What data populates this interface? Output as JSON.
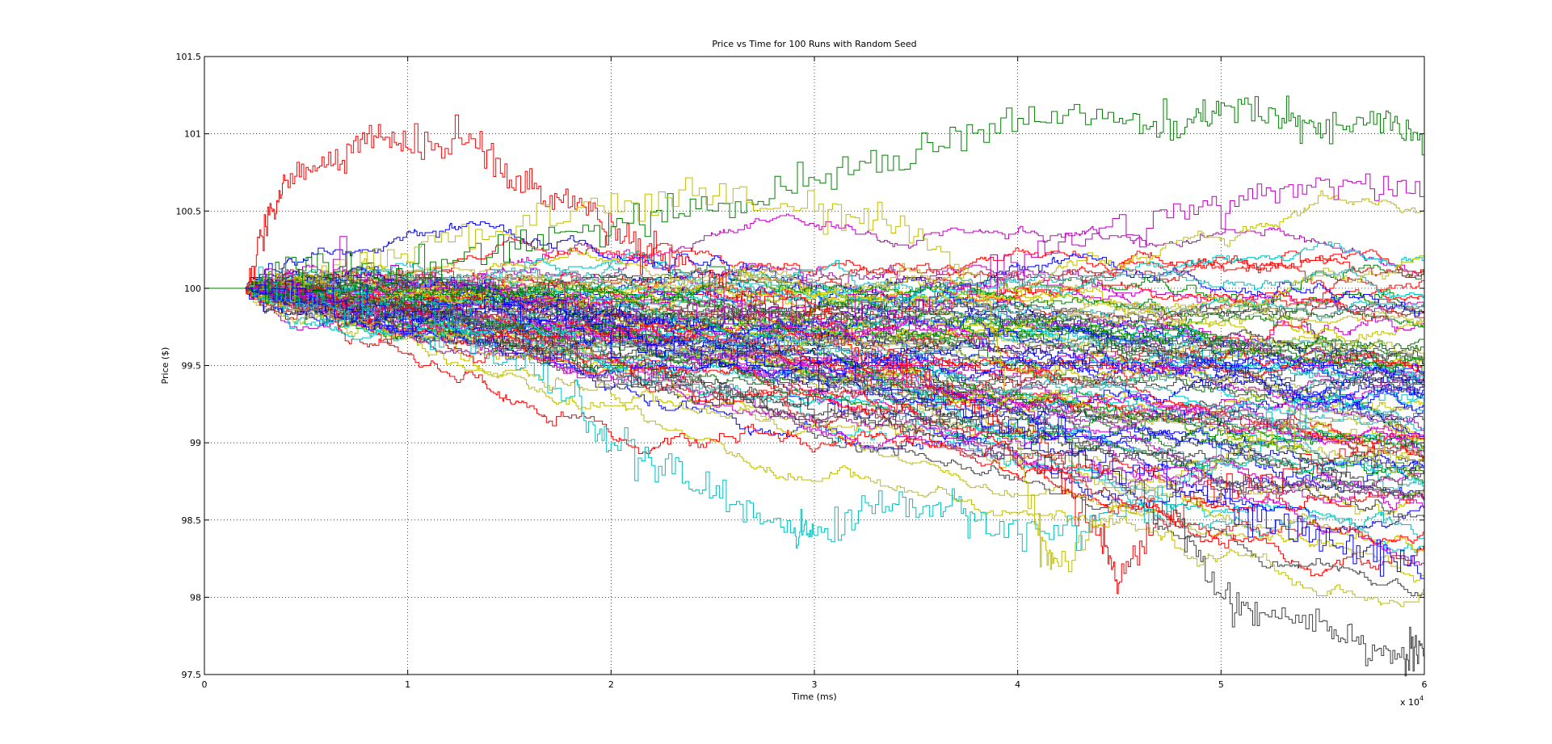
{
  "chart_data": {
    "type": "line",
    "title": "Price vs Time for 100 Runs with Random Seed",
    "xlabel": "Time (ms)",
    "ylabel": "Price ($)",
    "xlim": [
      0,
      60000
    ],
    "ylim": [
      97.5,
      101.5
    ],
    "x_ticks": [
      0,
      10000,
      20000,
      30000,
      40000,
      50000,
      60000
    ],
    "x_tick_labels": [
      "0",
      "1",
      "2",
      "3",
      "4",
      "5",
      "6"
    ],
    "x_exponent_label": "x 10",
    "x_exponent_power": "4",
    "y_ticks": [
      97.5,
      98,
      98.5,
      99,
      99.5,
      100,
      100.5,
      101,
      101.5
    ],
    "y_tick_labels": [
      "97.5",
      "98",
      "98.5",
      "99",
      "99.5",
      "100",
      "100.5",
      "101",
      "101.5"
    ],
    "grid": true,
    "run_count": 100,
    "start_price": 100,
    "start_time": 2000,
    "run_colors": [
      "#0000ff",
      "#008000",
      "#ff0000",
      "#00bfbf",
      "#bf00bf",
      "#bfbf00",
      "#404040"
    ],
    "highlighted_runs": [
      {
        "color": "#ff0000",
        "points": [
          [
            2000,
            100
          ],
          [
            3000,
            100.4
          ],
          [
            4000,
            100.7
          ],
          [
            6000,
            100.8
          ],
          [
            8000,
            101
          ],
          [
            10000,
            100.9
          ],
          [
            13000,
            101
          ],
          [
            15000,
            100.7
          ],
          [
            17000,
            100.6
          ],
          [
            19000,
            100.5
          ],
          [
            21000,
            100.3
          ],
          [
            23000,
            100.2
          ],
          [
            26000,
            100
          ],
          [
            30000,
            99.8
          ],
          [
            33000,
            99.5
          ],
          [
            37000,
            99.3
          ],
          [
            41000,
            99.0
          ],
          [
            44000,
            98.4
          ],
          [
            45000,
            98.1
          ],
          [
            47000,
            98.5
          ],
          [
            50000,
            98.7
          ],
          [
            55000,
            98.9
          ],
          [
            60000,
            99.1
          ]
        ]
      },
      {
        "color": "#008000",
        "points": [
          [
            2000,
            100
          ],
          [
            5000,
            100.2
          ],
          [
            10000,
            100.1
          ],
          [
            15000,
            100.3
          ],
          [
            20000,
            100.4
          ],
          [
            25000,
            100.5
          ],
          [
            30000,
            100.7
          ],
          [
            35000,
            100.9
          ],
          [
            40000,
            101.1
          ],
          [
            45000,
            101.1
          ],
          [
            48000,
            101.0
          ],
          [
            50000,
            101.2
          ],
          [
            53000,
            101.1
          ],
          [
            55000,
            101.0
          ],
          [
            58000,
            101.1
          ],
          [
            60000,
            100.9
          ]
        ]
      },
      {
        "color": "#404040",
        "points": [
          [
            2000,
            100
          ],
          [
            8000,
            99.9
          ],
          [
            14000,
            99.7
          ],
          [
            20000,
            99.5
          ],
          [
            26000,
            99.3
          ],
          [
            32000,
            99.2
          ],
          [
            38000,
            99.0
          ],
          [
            44000,
            98.8
          ],
          [
            48000,
            98.5
          ],
          [
            50000,
            98.0
          ],
          [
            52000,
            97.9
          ],
          [
            55000,
            97.85
          ],
          [
            57000,
            97.7
          ],
          [
            59000,
            97.6
          ],
          [
            60000,
            97.7
          ]
        ]
      },
      {
        "color": "#00bfbf",
        "points": [
          [
            2000,
            100
          ],
          [
            6000,
            99.9
          ],
          [
            10000,
            99.8
          ],
          [
            14000,
            99.6
          ],
          [
            18000,
            99.3
          ],
          [
            20000,
            99.0
          ],
          [
            23000,
            98.8
          ],
          [
            26000,
            98.6
          ],
          [
            29000,
            98.45
          ],
          [
            30000,
            98.4
          ],
          [
            33000,
            98.6
          ],
          [
            36000,
            98.6
          ],
          [
            38000,
            98.5
          ],
          [
            42000,
            98.4
          ],
          [
            46000,
            98.6
          ],
          [
            50000,
            98.9
          ],
          [
            55000,
            99.2
          ],
          [
            60000,
            99.4
          ]
        ]
      },
      {
        "color": "#bfbf00",
        "points": [
          [
            2000,
            100
          ],
          [
            6000,
            100.1
          ],
          [
            12000,
            100.3
          ],
          [
            18000,
            100.5
          ],
          [
            24000,
            100.6
          ],
          [
            30000,
            100.5
          ],
          [
            34000,
            100.4
          ],
          [
            38000,
            100.1
          ],
          [
            41000,
            98.4
          ],
          [
            42000,
            98.2
          ],
          [
            45000,
            98.6
          ],
          [
            50000,
            98.9
          ],
          [
            55000,
            99.1
          ],
          [
            60000,
            98.8
          ]
        ]
      },
      {
        "color": "#bf00bf",
        "points": [
          [
            2000,
            100
          ],
          [
            8000,
            100.1
          ],
          [
            15000,
            100.0
          ],
          [
            22000,
            99.9
          ],
          [
            30000,
            99.8
          ],
          [
            36000,
            99.9
          ],
          [
            42000,
            100.3
          ],
          [
            48000,
            100.5
          ],
          [
            52000,
            100.6
          ],
          [
            56000,
            100.7
          ],
          [
            60000,
            100.6
          ]
        ]
      },
      {
        "color": "#0000ff",
        "points": [
          [
            2000,
            100
          ],
          [
            8000,
            99.9
          ],
          [
            16000,
            99.8
          ],
          [
            24000,
            99.6
          ],
          [
            32000,
            99.4
          ],
          [
            40000,
            99.1
          ],
          [
            46000,
            98.8
          ],
          [
            50000,
            98.6
          ],
          [
            54000,
            98.4
          ],
          [
            57000,
            98.3
          ],
          [
            60000,
            98.2
          ]
        ]
      }
    ]
  }
}
